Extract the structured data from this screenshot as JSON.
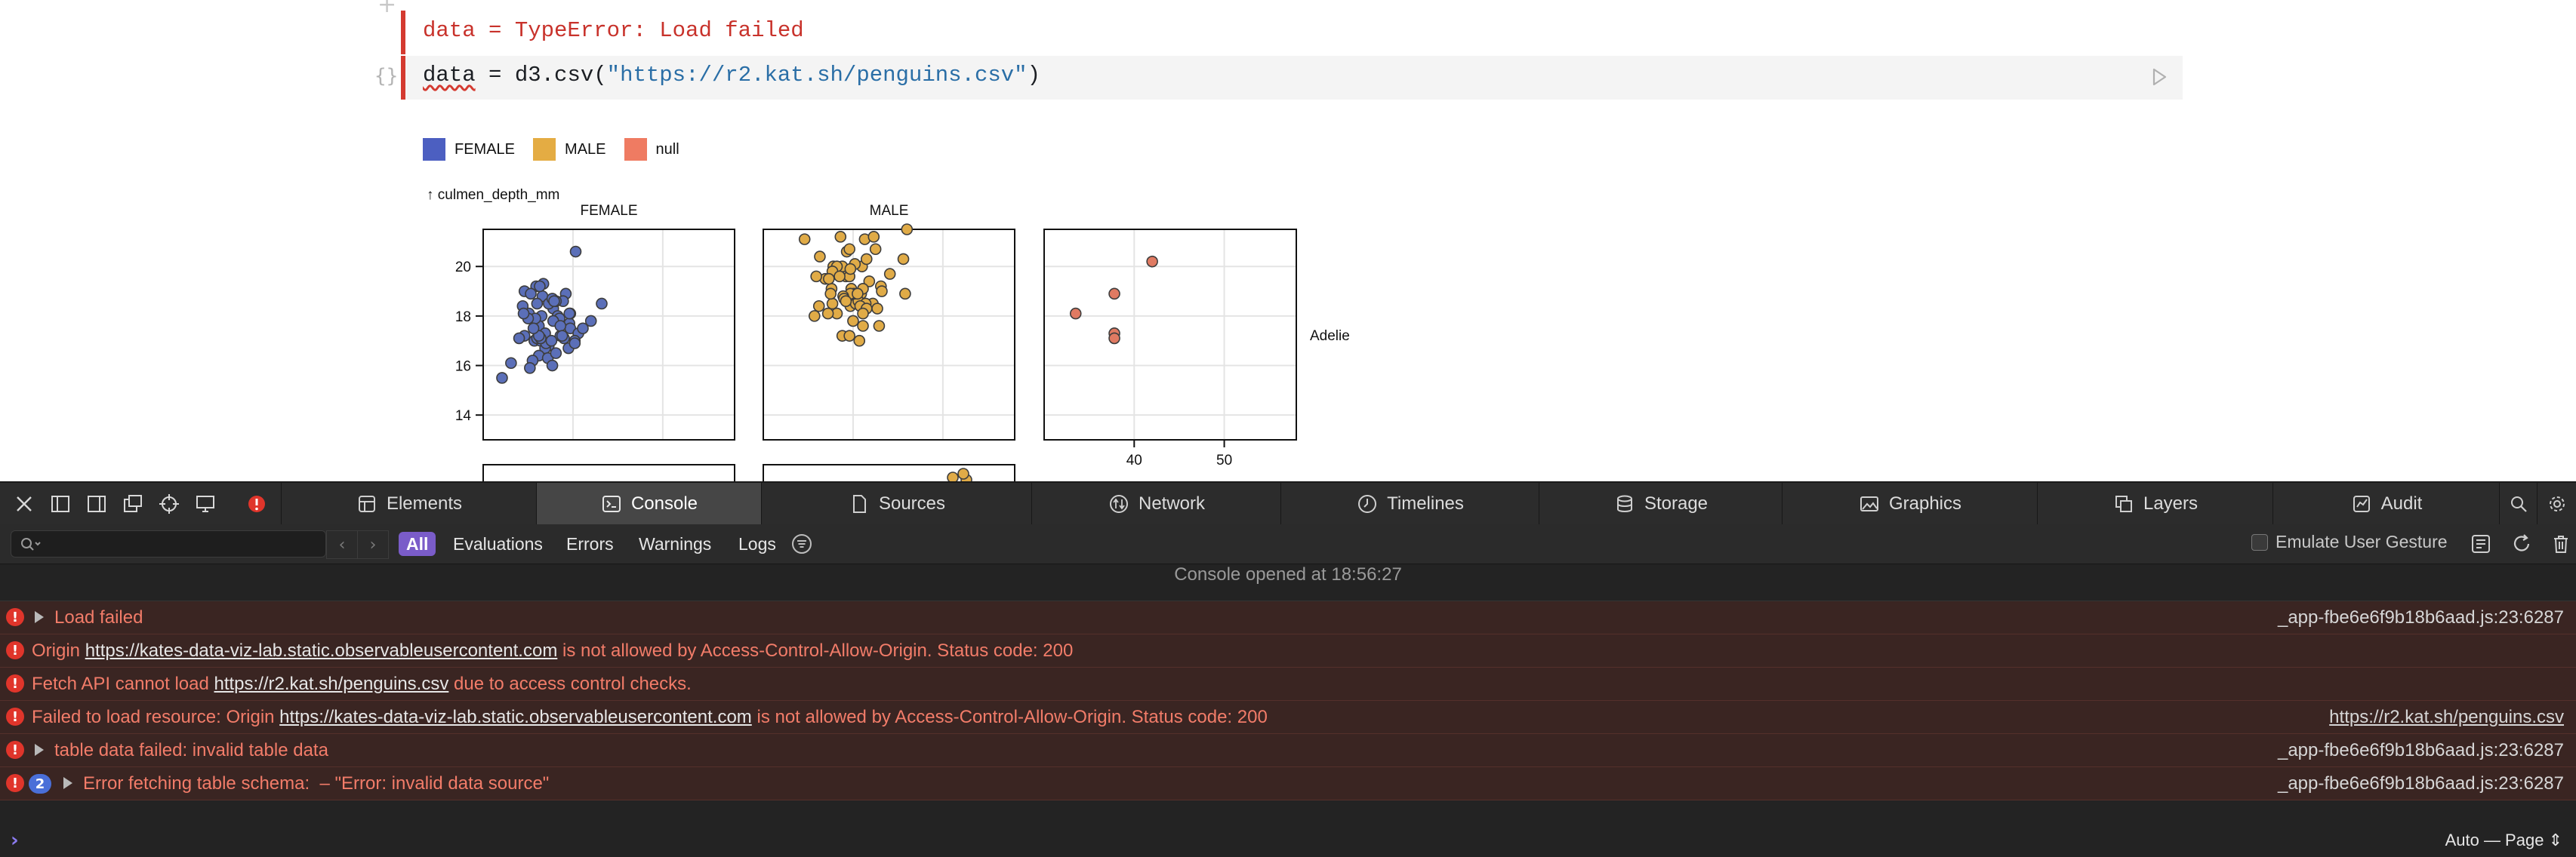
{
  "notebook": {
    "error_line": "data = TypeError: Load failed",
    "code": {
      "var": "data",
      "eq": " = ",
      "obj": "d3.csv(",
      "str": "\"https://r2.kat.sh/penguins.csv\"",
      "close": ")"
    }
  },
  "legend": [
    {
      "label": "FEMALE",
      "color": "#4c5fc1"
    },
    {
      "label": "MALE",
      "color": "#e4ac43"
    },
    {
      "label": "null",
      "color": "#ef7b62"
    }
  ],
  "chart_data": {
    "type": "scatter",
    "ylabel": "↑ culmen_depth_mm",
    "facets_x": [
      "FEMALE",
      "MALE",
      ""
    ],
    "facet_y": "Adelie",
    "x_ticks": [
      40,
      50
    ],
    "y_ticks": [
      14,
      16,
      18,
      20
    ],
    "xlim": [
      30,
      58
    ],
    "ylim": [
      13,
      21.5
    ],
    "series": [
      {
        "color": "#5b6fb8",
        "points": [
          [
            40.3,
            20.6
          ],
          [
            36.7,
            19.3
          ],
          [
            36.6,
            18.8
          ],
          [
            39.2,
            18.9
          ],
          [
            38.9,
            18.6
          ],
          [
            39.6,
            17.7
          ],
          [
            37.8,
            18.3
          ],
          [
            35.9,
            19.2
          ],
          [
            34.6,
            17.2
          ],
          [
            36.5,
            18.0
          ],
          [
            37.3,
            18.5
          ],
          [
            36.2,
            17.6
          ],
          [
            38.6,
            17.2
          ],
          [
            35.7,
            17.0
          ],
          [
            37.7,
            18.7
          ],
          [
            38.3,
            18.0
          ],
          [
            35.1,
            18.1
          ],
          [
            39.7,
            17.5
          ],
          [
            37.3,
            16.8
          ],
          [
            36.4,
            17.0
          ],
          [
            38.5,
            17.9
          ],
          [
            36.9,
            16.7
          ],
          [
            39.5,
            16.7
          ],
          [
            36.2,
            16.4
          ],
          [
            35.5,
            16.2
          ],
          [
            34.0,
            17.1
          ],
          [
            35.8,
            17.9
          ],
          [
            37.8,
            17.8
          ],
          [
            36.9,
            17.3
          ],
          [
            40.6,
            17.3
          ],
          [
            37.2,
            16.3
          ],
          [
            36.0,
            17.1
          ],
          [
            38.1,
            16.5
          ],
          [
            36.3,
            19.2
          ],
          [
            35.0,
            17.9
          ],
          [
            38.6,
            17.6
          ],
          [
            39.0,
            17.1
          ],
          [
            33.1,
            16.1
          ],
          [
            32.1,
            15.5
          ],
          [
            34.4,
            18.4
          ],
          [
            37.7,
            16.0
          ],
          [
            35.2,
            15.9
          ],
          [
            34.6,
            19.0
          ],
          [
            37.0,
            16.9
          ],
          [
            36.4,
            17.1
          ],
          [
            38.8,
            17.2
          ],
          [
            35.3,
            18.9
          ],
          [
            40.2,
            17.0
          ],
          [
            41.1,
            17.5
          ],
          [
            43.2,
            18.5
          ],
          [
            39.7,
            18.1
          ],
          [
            37.6,
            17.0
          ],
          [
            36.2,
            17.2
          ],
          [
            38.1,
            18.6
          ],
          [
            34.5,
            18.1
          ],
          [
            35.6,
            17.5
          ],
          [
            40.2,
            16.9
          ],
          [
            39.6,
            18.1
          ],
          [
            36.0,
            18.5
          ],
          [
            37.9,
            18.6
          ],
          [
            42.0,
            17.8
          ]
        ]
      },
      {
        "color": "#e0ab47",
        "points": [
          [
            39.1,
            18.7
          ],
          [
            39.3,
            20.6
          ],
          [
            39.2,
            19.6
          ],
          [
            38.6,
            21.2
          ],
          [
            34.6,
            21.1
          ],
          [
            42.5,
            20.7
          ],
          [
            37.7,
            18.5
          ],
          [
            38.2,
            18.1
          ],
          [
            38.8,
            17.2
          ],
          [
            41.1,
            17.6
          ],
          [
            37.8,
            20.0
          ],
          [
            40.9,
            18.9
          ],
          [
            39.7,
            18.4
          ],
          [
            40.3,
            18.5
          ],
          [
            36.9,
            19.5
          ],
          [
            40.6,
            18.6
          ],
          [
            41.3,
            21.1
          ],
          [
            45.8,
            18.9
          ],
          [
            37.6,
            19.1
          ],
          [
            42.9,
            17.6
          ],
          [
            35.9,
            19.6
          ],
          [
            41.8,
            19.4
          ],
          [
            43.1,
            19.2
          ],
          [
            42.2,
            18.5
          ],
          [
            41.4,
            18.5
          ],
          [
            39.8,
            19.1
          ],
          [
            40.8,
            18.4
          ],
          [
            44.1,
            19.7
          ],
          [
            39.6,
            20.7
          ],
          [
            41.5,
            18.3
          ],
          [
            42.3,
            21.2
          ],
          [
            40.1,
            18.9
          ],
          [
            45.6,
            20.3
          ],
          [
            41.1,
            19.1
          ],
          [
            39.7,
            18.9
          ],
          [
            37.5,
            18.9
          ],
          [
            38.9,
            18.8
          ],
          [
            41.0,
            20.0
          ],
          [
            38.8,
            20.0
          ],
          [
            36.2,
            18.4
          ],
          [
            39.6,
            19.6
          ],
          [
            39.0,
            18.7
          ],
          [
            37.2,
            18.1
          ],
          [
            40.7,
            17.0
          ],
          [
            39.2,
            18.6
          ],
          [
            43.2,
            19.0
          ],
          [
            42.7,
            18.3
          ],
          [
            41.5,
            20.3
          ],
          [
            40.5,
            18.9
          ],
          [
            38.2,
            20.0
          ],
          [
            35.7,
            18.0
          ],
          [
            41.1,
            18.1
          ],
          [
            37.7,
            19.8
          ],
          [
            39.6,
            17.2
          ],
          [
            38.5,
            19.6
          ],
          [
            40.2,
            20.1
          ],
          [
            46.0,
            21.5
          ],
          [
            37.3,
            19.5
          ],
          [
            39.7,
            19.9
          ],
          [
            36.3,
            20.4
          ],
          [
            40.0,
            17.8
          ]
        ]
      },
      {
        "color": "#e07a62",
        "points": [
          [
            42.0,
            20.2
          ],
          [
            37.8,
            18.9
          ],
          [
            37.8,
            17.3
          ],
          [
            33.5,
            18.1
          ],
          [
            37.8,
            17.1
          ]
        ]
      }
    ]
  },
  "devtools": {
    "tabs": [
      "Elements",
      "Console",
      "Sources",
      "Network",
      "Timelines",
      "Storage",
      "Graphics",
      "Layers",
      "Audit"
    ],
    "search_placeholder": "",
    "filters": [
      "All",
      "Evaluations",
      "Errors",
      "Warnings",
      "Logs"
    ],
    "emulate_label": "Emulate User Gesture",
    "opened_text": "Console opened at 18:56:27",
    "messages": [
      {
        "text": "Load failed",
        "source": "_app-fbe6e6f9b18b6aad.js:23:6287"
      },
      {
        "pre": "Origin ",
        "link": "https://kates-data-viz-lab.static.observableusercontent.com",
        "post": " is not allowed by Access-Control-Allow-Origin. Status code: 200"
      },
      {
        "pre": "Fetch API cannot load ",
        "link": "https://r2.kat.sh/penguins.csv",
        "post": " due to access control checks."
      },
      {
        "pre": "Failed to load resource: Origin ",
        "link": "https://kates-data-viz-lab.static.observableusercontent.com",
        "post": " is not allowed by Access-Control-Allow-Origin. Status code: 200",
        "source": "https://r2.kat.sh/penguins.csv"
      },
      {
        "text": "table data failed: invalid table data",
        "source": "_app-fbe6e6f9b18b6aad.js:23:6287"
      },
      {
        "count": "2",
        "text": "Error fetching table schema:  – \"Error: invalid data source\"",
        "source": "_app-fbe6e6f9b18b6aad.js:23:6287"
      }
    ],
    "prompt_context": "Auto — Page"
  }
}
